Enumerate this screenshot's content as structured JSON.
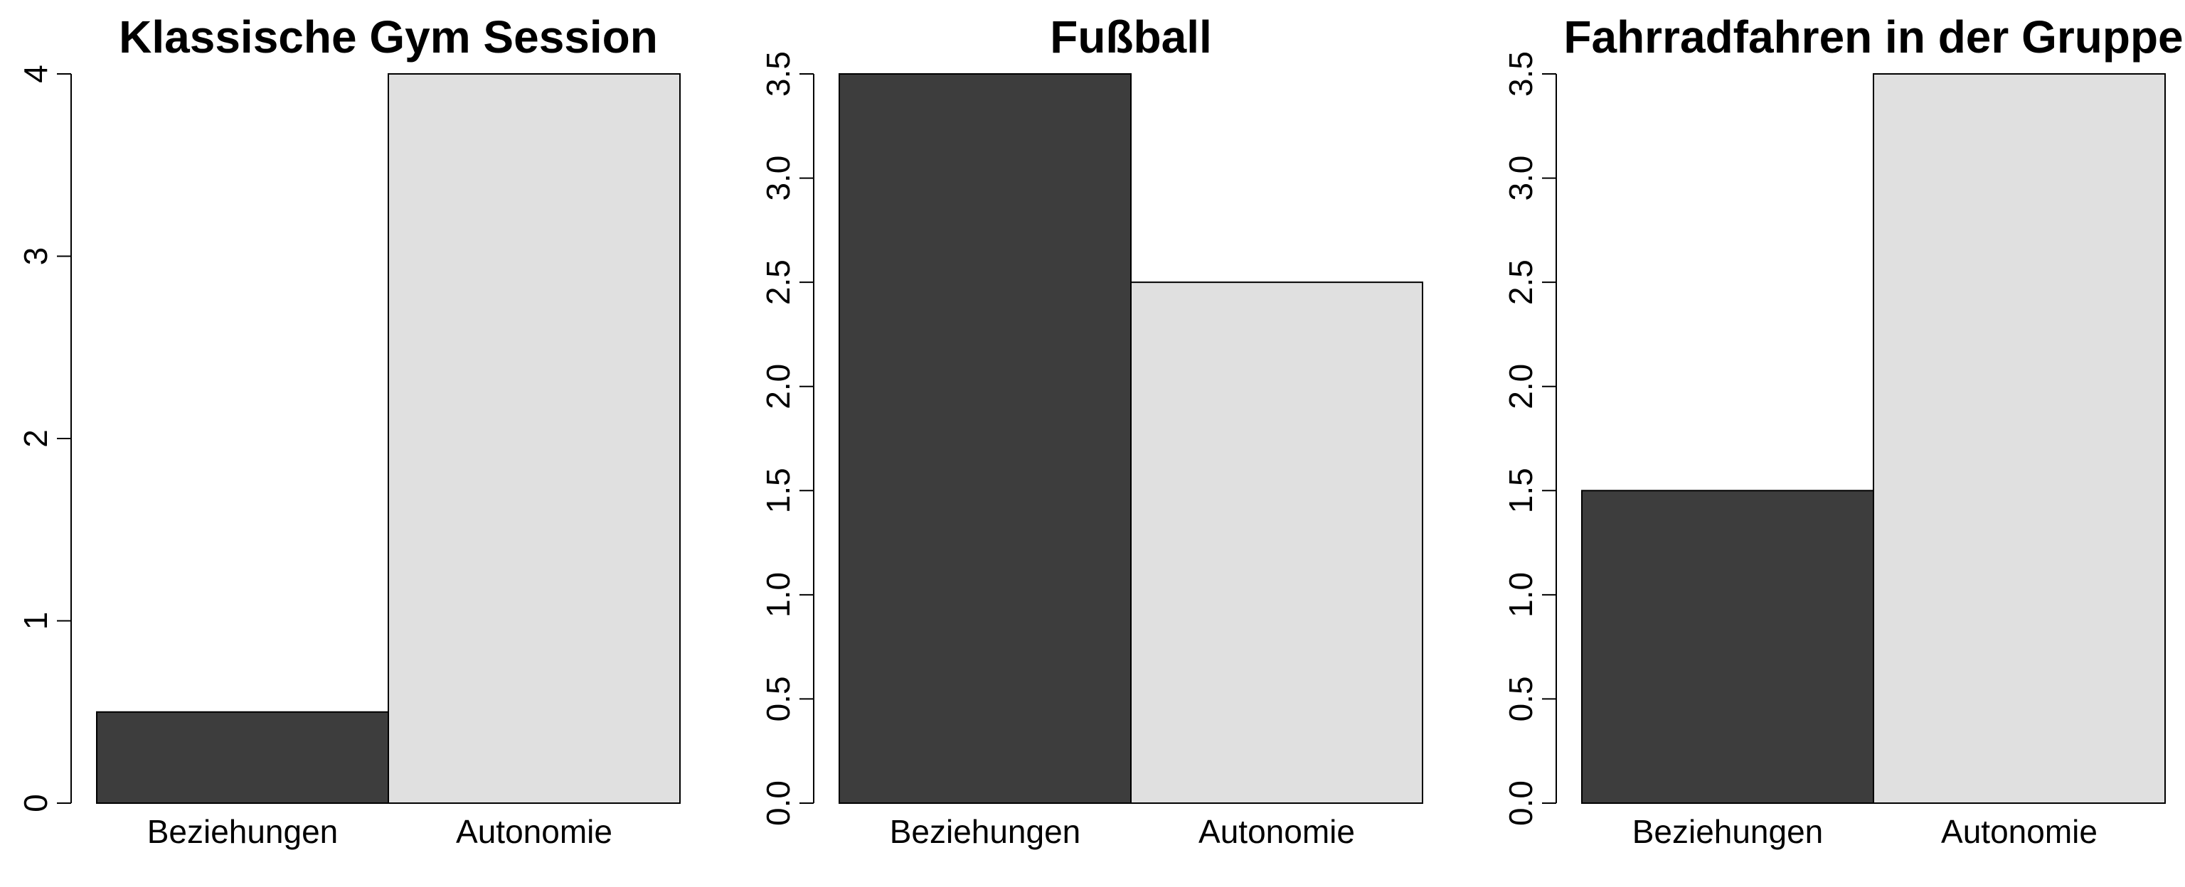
{
  "chart_data": [
    {
      "type": "bar",
      "title": "Klassische Gym Session",
      "categories": [
        "Beziehungen",
        "Autonomie"
      ],
      "values": [
        0.5,
        4
      ],
      "colors": [
        "#3d3d3d",
        "#e0e0e0"
      ],
      "ylim": [
        0,
        4
      ],
      "yticks": [
        "0",
        "1",
        "2",
        "3",
        "4"
      ],
      "xlabel": "",
      "ylabel": "",
      "grid": false
    },
    {
      "type": "bar",
      "title": "Fußball",
      "categories": [
        "Beziehungen",
        "Autonomie"
      ],
      "values": [
        3.5,
        2.5
      ],
      "colors": [
        "#3d3d3d",
        "#e0e0e0"
      ],
      "ylim": [
        0,
        3.5
      ],
      "yticks": [
        "0.0",
        "0.5",
        "1.0",
        "1.5",
        "2.0",
        "2.5",
        "3.0",
        "3.5"
      ],
      "xlabel": "",
      "ylabel": "",
      "grid": false
    },
    {
      "type": "bar",
      "title": "Fahrradfahren in der Gruppe",
      "categories": [
        "Beziehungen",
        "Autonomie"
      ],
      "values": [
        1.5,
        3.5
      ],
      "colors": [
        "#3d3d3d",
        "#e0e0e0"
      ],
      "ylim": [
        0,
        3.5
      ],
      "yticks": [
        "0.0",
        "0.5",
        "1.0",
        "1.5",
        "2.0",
        "2.5",
        "3.0",
        "3.5"
      ],
      "xlabel": "",
      "ylabel": "",
      "grid": false
    }
  ]
}
